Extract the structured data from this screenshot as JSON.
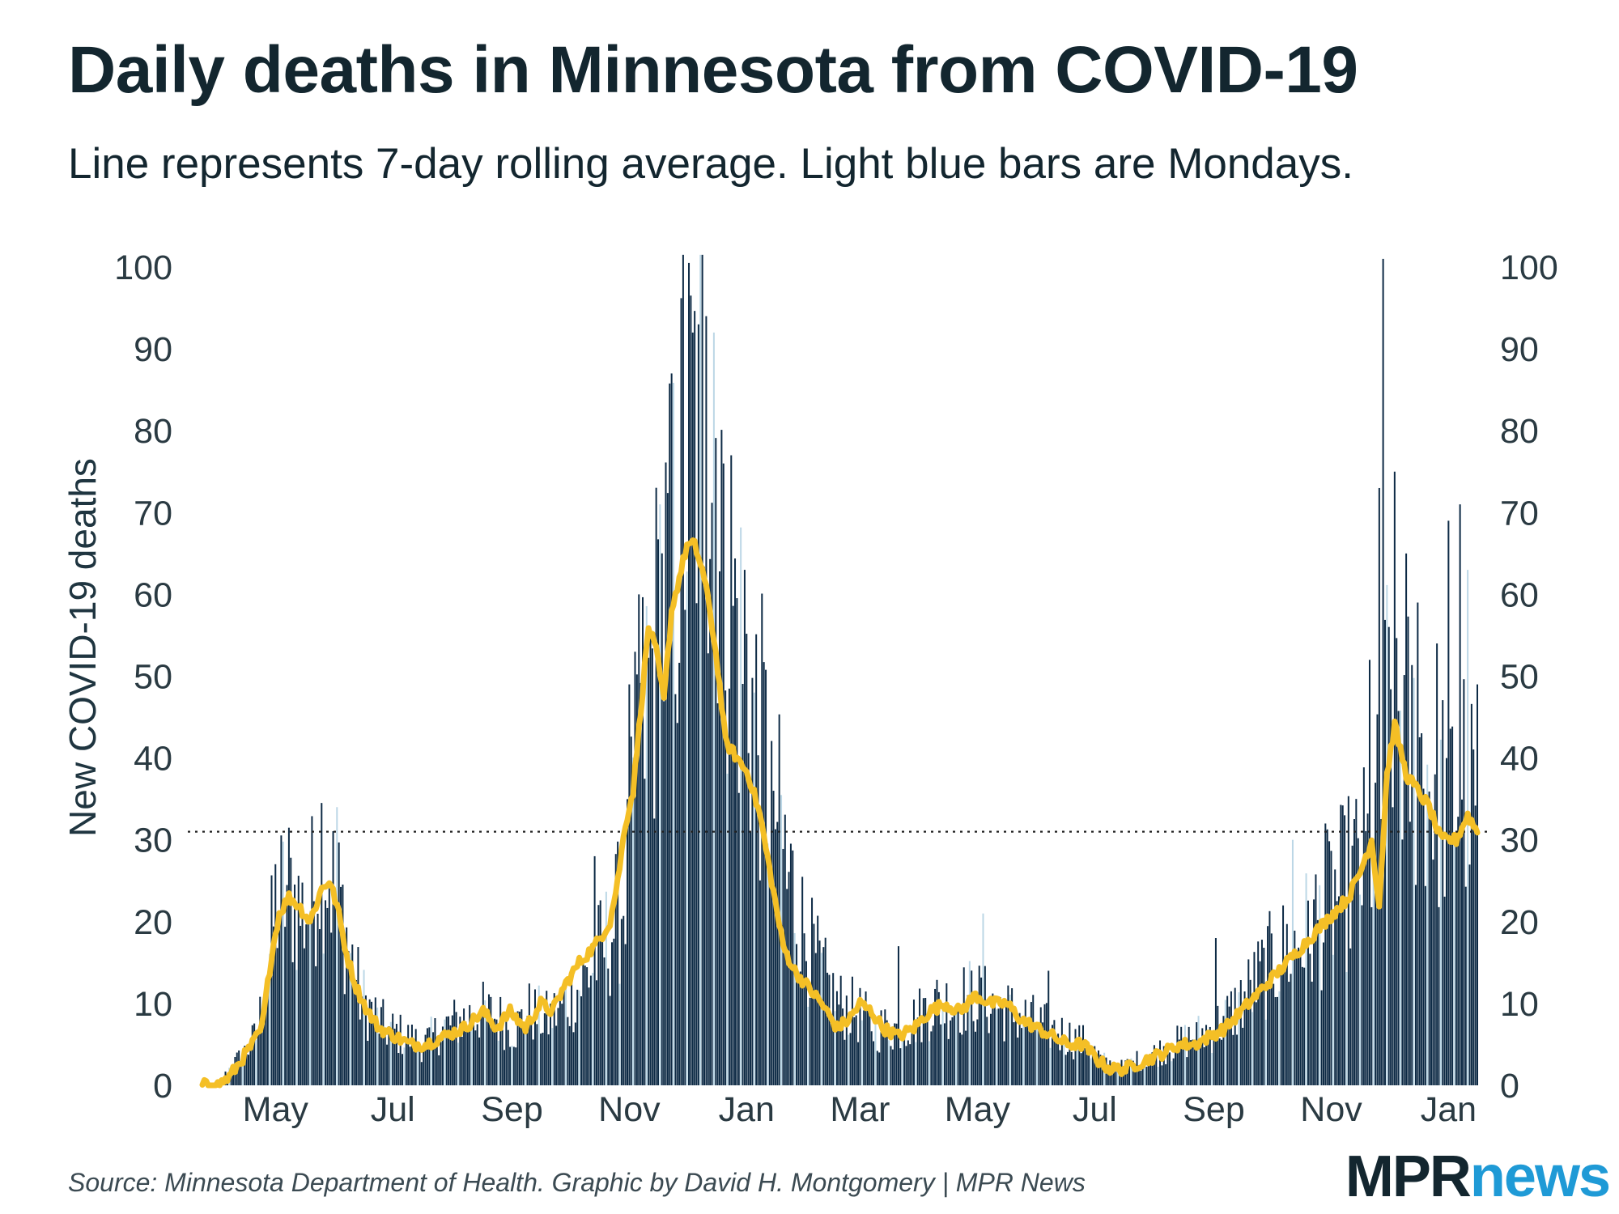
{
  "title": "Daily deaths in Minnesota from COVID-19",
  "subtitle": "Line represents 7-day rolling average. Light blue bars are Mondays.",
  "source": "Source: Minnesota Department of Health. Graphic by David H. Montgomery | MPR News",
  "logo": {
    "part1": "MPR",
    "part2": "news"
  },
  "colors": {
    "bar": "#0d2a45",
    "monday_bar": "#bcd7e6",
    "line": "#f4bf26",
    "text": "#13262f",
    "logo_accent": "#1f9ad6"
  },
  "chart_data": {
    "type": "bar",
    "title": "Daily deaths in Minnesota from COVID-19",
    "ylabel": "New COVID-19 deaths",
    "xlabel": "",
    "ylim": [
      0,
      100
    ],
    "y_ticks": [
      0,
      10,
      20,
      30,
      40,
      50,
      60,
      70,
      80,
      90,
      100
    ],
    "x_ticks": [
      {
        "label": "May",
        "day": 38
      },
      {
        "label": "Jul",
        "day": 99
      },
      {
        "label": "Sep",
        "day": 161
      },
      {
        "label": "Nov",
        "day": 222
      },
      {
        "label": "Jan",
        "day": 283
      },
      {
        "label": "Mar",
        "day": 342
      },
      {
        "label": "May",
        "day": 403
      },
      {
        "label": "Jul",
        "day": 464
      },
      {
        "label": "Sep",
        "day": 526
      },
      {
        "label": "Nov",
        "day": 587
      },
      {
        "label": "Jan",
        "day": 648
      }
    ],
    "reference_line": {
      "value": 31,
      "style": "dotted"
    },
    "days": 664,
    "first_day": "2020-03-23",
    "monday_offset": 0,
    "daily_anchors": [
      [
        0,
        0
      ],
      [
        8,
        0
      ],
      [
        14,
        2
      ],
      [
        22,
        4
      ],
      [
        28,
        6
      ],
      [
        33,
        12
      ],
      [
        38,
        22
      ],
      [
        45,
        24
      ],
      [
        52,
        21
      ],
      [
        58,
        24
      ],
      [
        62,
        30
      ],
      [
        67,
        25
      ],
      [
        72,
        22
      ],
      [
        77,
        16
      ],
      [
        82,
        11
      ],
      [
        88,
        9
      ],
      [
        95,
        7
      ],
      [
        105,
        6
      ],
      [
        115,
        5
      ],
      [
        125,
        7
      ],
      [
        135,
        8
      ],
      [
        145,
        9
      ],
      [
        155,
        8
      ],
      [
        163,
        7
      ],
      [
        170,
        9
      ],
      [
        180,
        8
      ],
      [
        188,
        10
      ],
      [
        196,
        12
      ],
      [
        204,
        15
      ],
      [
        211,
        18
      ],
      [
        218,
        22
      ],
      [
        222,
        27
      ],
      [
        226,
        40
      ],
      [
        232,
        48
      ],
      [
        238,
        56
      ],
      [
        244,
        62
      ],
      [
        250,
        72
      ],
      [
        256,
        80
      ],
      [
        262,
        85
      ],
      [
        266,
        82
      ],
      [
        270,
        72
      ],
      [
        275,
        60
      ],
      [
        281,
        52
      ],
      [
        287,
        45
      ],
      [
        293,
        40
      ],
      [
        299,
        33
      ],
      [
        305,
        26
      ],
      [
        311,
        20
      ],
      [
        317,
        16
      ],
      [
        323,
        13
      ],
      [
        330,
        10
      ],
      [
        340,
        9
      ],
      [
        350,
        7
      ],
      [
        360,
        7
      ],
      [
        370,
        8
      ],
      [
        380,
        10
      ],
      [
        390,
        10
      ],
      [
        400,
        11
      ],
      [
        410,
        10
      ],
      [
        420,
        9
      ],
      [
        430,
        8
      ],
      [
        440,
        7
      ],
      [
        450,
        6
      ],
      [
        460,
        5
      ],
      [
        468,
        3
      ],
      [
        476,
        2
      ],
      [
        486,
        3
      ],
      [
        496,
        4
      ],
      [
        506,
        5
      ],
      [
        516,
        6
      ],
      [
        526,
        7
      ],
      [
        536,
        9
      ],
      [
        546,
        12
      ],
      [
        556,
        15
      ],
      [
        566,
        17
      ],
      [
        576,
        19
      ],
      [
        586,
        22
      ],
      [
        596,
        25
      ],
      [
        606,
        28
      ],
      [
        612,
        33
      ],
      [
        616,
        45
      ],
      [
        620,
        50
      ],
      [
        626,
        42
      ],
      [
        632,
        40
      ],
      [
        638,
        38
      ],
      [
        644,
        36
      ],
      [
        650,
        35
      ],
      [
        656,
        38
      ],
      [
        663,
        32
      ]
    ],
    "average_anchors": [
      [
        0,
        0
      ],
      [
        8,
        0
      ],
      [
        14,
        1
      ],
      [
        20,
        3
      ],
      [
        26,
        5
      ],
      [
        31,
        7
      ],
      [
        36,
        16
      ],
      [
        40,
        21
      ],
      [
        45,
        23
      ],
      [
        50,
        22
      ],
      [
        56,
        20
      ],
      [
        62,
        24
      ],
      [
        66,
        25
      ],
      [
        70,
        22
      ],
      [
        75,
        16
      ],
      [
        80,
        12
      ],
      [
        86,
        9
      ],
      [
        92,
        7
      ],
      [
        100,
        6
      ],
      [
        108,
        5
      ],
      [
        116,
        5
      ],
      [
        126,
        6
      ],
      [
        136,
        7
      ],
      [
        146,
        9
      ],
      [
        153,
        7
      ],
      [
        160,
        9
      ],
      [
        168,
        7
      ],
      [
        176,
        10
      ],
      [
        182,
        9
      ],
      [
        188,
        12
      ],
      [
        196,
        15
      ],
      [
        204,
        17
      ],
      [
        212,
        20
      ],
      [
        216,
        25
      ],
      [
        220,
        32
      ],
      [
        224,
        36
      ],
      [
        228,
        46
      ],
      [
        232,
        56
      ],
      [
        236,
        53
      ],
      [
        240,
        47
      ],
      [
        244,
        58
      ],
      [
        248,
        62
      ],
      [
        252,
        66
      ],
      [
        256,
        66
      ],
      [
        260,
        63
      ],
      [
        264,
        58
      ],
      [
        268,
        51
      ],
      [
        272,
        42
      ],
      [
        278,
        40
      ],
      [
        284,
        38
      ],
      [
        290,
        33
      ],
      [
        296,
        25
      ],
      [
        302,
        17
      ],
      [
        308,
        14
      ],
      [
        315,
        12
      ],
      [
        322,
        10
      ],
      [
        330,
        7
      ],
      [
        336,
        8
      ],
      [
        342,
        10
      ],
      [
        348,
        9
      ],
      [
        354,
        7
      ],
      [
        362,
        6
      ],
      [
        370,
        7
      ],
      [
        378,
        9
      ],
      [
        386,
        10
      ],
      [
        394,
        9
      ],
      [
        402,
        11
      ],
      [
        410,
        10
      ],
      [
        418,
        10
      ],
      [
        426,
        8
      ],
      [
        434,
        7
      ],
      [
        442,
        6
      ],
      [
        450,
        5
      ],
      [
        458,
        5
      ],
      [
        466,
        3
      ],
      [
        472,
        2
      ],
      [
        480,
        2
      ],
      [
        490,
        3
      ],
      [
        500,
        4
      ],
      [
        508,
        5
      ],
      [
        516,
        5
      ],
      [
        524,
        6
      ],
      [
        532,
        7
      ],
      [
        540,
        9
      ],
      [
        548,
        11
      ],
      [
        556,
        13
      ],
      [
        564,
        15
      ],
      [
        572,
        17
      ],
      [
        580,
        19
      ],
      [
        588,
        21
      ],
      [
        596,
        23
      ],
      [
        602,
        26
      ],
      [
        608,
        30
      ],
      [
        612,
        22
      ],
      [
        616,
        38
      ],
      [
        620,
        44
      ],
      [
        626,
        38
      ],
      [
        632,
        36
      ],
      [
        638,
        34
      ],
      [
        644,
        30
      ],
      [
        648,
        30
      ],
      [
        652,
        30
      ],
      [
        658,
        33
      ],
      [
        663,
        31
      ]
    ],
    "spikes": [
      [
        70,
        34
      ],
      [
        204,
        28
      ],
      [
        222,
        49
      ],
      [
        227,
        60
      ],
      [
        238,
        71
      ],
      [
        244,
        87
      ],
      [
        250,
        102
      ],
      [
        255,
        92
      ],
      [
        258,
        93
      ],
      [
        262,
        94
      ],
      [
        266,
        92
      ],
      [
        271,
        76
      ],
      [
        275,
        77
      ],
      [
        282,
        63
      ],
      [
        287,
        48
      ],
      [
        297,
        36
      ],
      [
        304,
        24
      ],
      [
        362,
        17
      ],
      [
        406,
        21
      ],
      [
        440,
        14
      ],
      [
        527,
        18
      ],
      [
        567,
        30
      ],
      [
        584,
        32
      ],
      [
        594,
        33
      ],
      [
        600,
        35
      ],
      [
        607,
        52
      ],
      [
        612,
        73
      ],
      [
        614,
        101
      ],
      [
        620,
        75
      ],
      [
        626,
        65
      ],
      [
        632,
        59
      ],
      [
        642,
        54
      ],
      [
        648,
        69
      ],
      [
        654,
        71
      ],
      [
        658,
        63
      ],
      [
        663,
        49
      ]
    ]
  }
}
